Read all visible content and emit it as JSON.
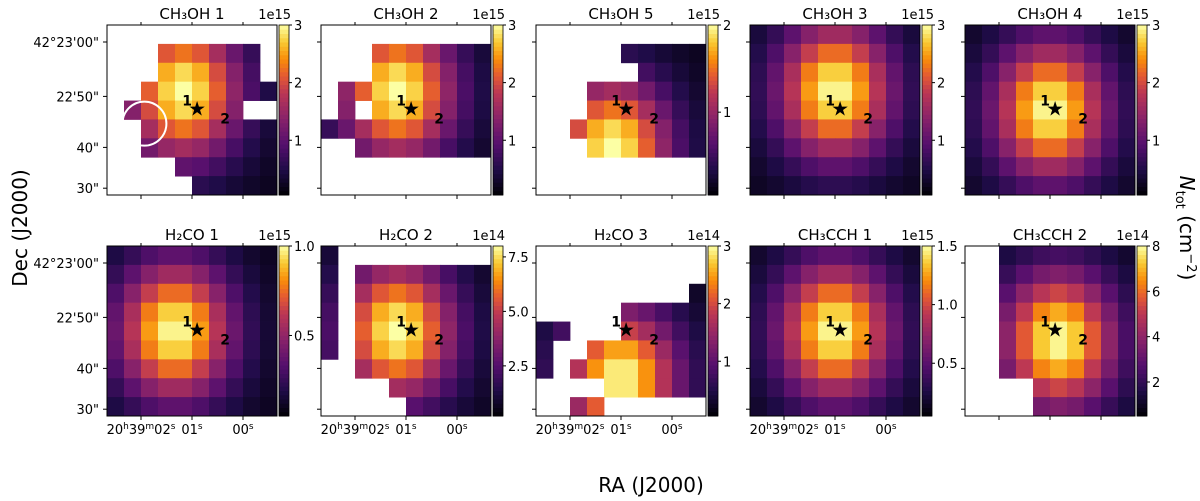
{
  "figure": {
    "xlabel": "RA (J2000)",
    "ylabel": "Dec (J2000)",
    "cbar_label": "N_tot (cm^-2)",
    "ytick_labels": [
      "42°23'00\"",
      "22'50\"",
      "40\"",
      "30\""
    ],
    "xtick_labels": [
      "20h39m02s",
      "01s",
      "00s"
    ],
    "source_labels": [
      "1",
      "2"
    ],
    "star_symbol": "★",
    "colors": {
      "missing": "#ffffff",
      "beam_circle": "#ffffff"
    }
  },
  "chart_data": [
    {
      "type": "heatmap",
      "title": "CH₃OH 1",
      "exponent": "1e15",
      "clim": [
        0.05,
        3.0
      ],
      "cticks": [
        1,
        2,
        3
      ],
      "ctick_labels": [
        "1",
        "2",
        "3"
      ],
      "beam": true,
      "peak": [
        4,
        3
      ]
    },
    {
      "type": "heatmap",
      "title": "CH₃OH 2",
      "exponent": "1e15",
      "clim": [
        0.05,
        3.0
      ],
      "cticks": [
        1,
        2,
        3
      ],
      "ctick_labels": [
        "1",
        "2",
        "3"
      ],
      "beam": false,
      "peak": [
        4,
        3
      ]
    },
    {
      "type": "heatmap",
      "title": "CH₃OH 5",
      "exponent": "1e15",
      "clim": [
        0.05,
        2.0
      ],
      "cticks": [
        1,
        2
      ],
      "ctick_labels": [
        "1",
        "2"
      ],
      "beam": false,
      "peak": [
        4,
        6
      ]
    },
    {
      "type": "heatmap",
      "title": "CH₃OH 3",
      "exponent": "1e15",
      "clim": [
        0.05,
        3.0
      ],
      "cticks": [
        1,
        2,
        3
      ],
      "ctick_labels": [
        "1",
        "2",
        "3"
      ],
      "beam": false,
      "peak": [
        4.5,
        3
      ]
    },
    {
      "type": "heatmap",
      "title": "CH₃OH 4",
      "exponent": "1e15",
      "clim": [
        0.05,
        3.0
      ],
      "cticks": [
        1,
        2,
        3
      ],
      "ctick_labels": [
        "1",
        "2",
        "3"
      ],
      "beam": false,
      "peak": [
        4.5,
        4
      ]
    },
    {
      "type": "heatmap",
      "title": "H₂CO 1",
      "exponent": "1e15",
      "clim": [
        0.05,
        1.0
      ],
      "cticks": [
        0.5,
        1.0
      ],
      "ctick_labels": [
        "0.5",
        "1.0"
      ],
      "beam": false,
      "peak": [
        3.5,
        4
      ]
    },
    {
      "type": "heatmap",
      "title": "H₂CO 2",
      "exponent": "1e14",
      "clim": [
        0.2,
        8.0
      ],
      "cticks": [
        2.5,
        5.0,
        7.5
      ],
      "ctick_labels": [
        "2.5",
        "5.0",
        "7.5"
      ],
      "beam": false,
      "peak": [
        4,
        4
      ]
    },
    {
      "type": "heatmap",
      "title": "H₂CO 3",
      "exponent": "1e14",
      "clim": [
        0.05,
        3.0
      ],
      "cticks": [
        1,
        2,
        3
      ],
      "ctick_labels": [
        "1",
        "2",
        "3"
      ],
      "beam": false,
      "peak": [
        4.5,
        6.5
      ]
    },
    {
      "type": "heatmap",
      "title": "CH₃CCH 1",
      "exponent": "1e15",
      "clim": [
        0.05,
        1.5
      ],
      "cticks": [
        0.5,
        1.0,
        1.5
      ],
      "ctick_labels": [
        "0.5",
        "1.0",
        "1.5"
      ],
      "beam": false,
      "peak": [
        4.5,
        4
      ]
    },
    {
      "type": "heatmap",
      "title": "CH₃CCH 2",
      "exponent": "1e14",
      "clim": [
        0.5,
        8.0
      ],
      "cticks": [
        2,
        4,
        6,
        8
      ],
      "ctick_labels": [
        "2",
        "4",
        "6",
        "8"
      ],
      "beam": false,
      "peak": [
        5,
        4.5
      ]
    }
  ]
}
